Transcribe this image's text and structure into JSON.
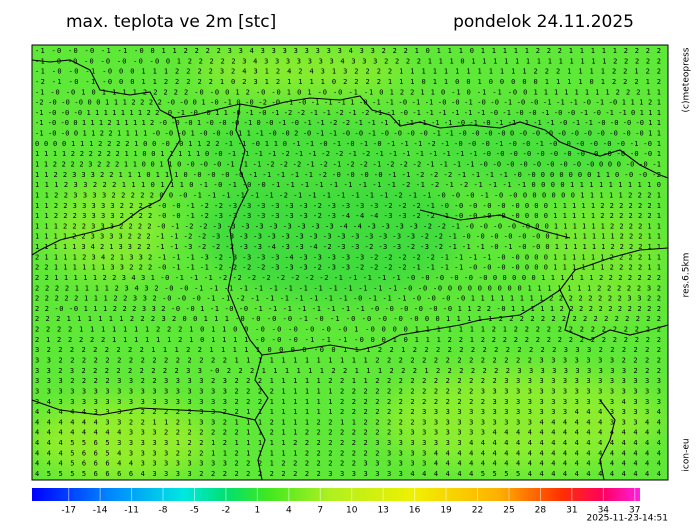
{
  "header": {
    "title": "max. teplota ve 2m [stc]",
    "date": "pondelok 24.11.2025"
  },
  "side_labels": [
    "(c)meteopress",
    "res.6.5km",
    "icon-eu"
  ],
  "grid_rows": [
    "-1 -0 -0 -0 -1 -1 -0 0 1 1 2 2 2 2 3 3 4 3 3 3 3 3 3 3 3 4 3 3 2 2 2 1 0 1 1 1 0 1 1 1 1 1 2 2 2 1 1 1 1 1 2 2 2 2",
    "-1 -0 -0 -0 -0 -0 -0 -0 0 1 2 2 2 2 2 3 4 3 3 3 3 3 3 3 4 3 3 3 2 2 2 2 1 1 1 0 1 1 1 1 1 1 1 1 1 1 1 1 1 2 2 2 2 2",
    "-1 -0 -0 -1 -0 0 0 1 1 1 2 2 2 2 3 2 4 3 1 2 4 2 4 3 1 3 2 2 2 2 1 1 1 1 1 1 1 1 1 1 1 1 2 2 2 1 1 1 1 2 2 1 2 2",
    "-2 -1 -0 -1 -0 0 0 1 1 2 2 2 2 2 1 0 2 3 1 2 1 1 1 1 0 2 2 2 2 1 1 1 0 1 1 0 0 1 0 0 0 0 0 1 1 1 1 0 1 2 2 2 1 2",
    "-1 -0 -0 1 0 1 1 1 1 2 2 2 2 2 -0 -0 0 1 2 -0 -0 1 0 1 -0 -0 -1 -1 0 1 2 2 1 1 0 -1 0 -1 -1 -0 0 1 1 1 1 1 1 1 1 2 2 2 1 1",
    "-2 -0 -0 -0 0 0 1 1 1 2 2 2 2 -0 -0 0 1 -0 -1 0 -0 -2 -0 -1 -0 -1 -1 -1 1 -0 -1 -1 -0 -1 -1 -0 -0 -1 -0 -0 -1 -0 -0 -1 -1 -1 -0 -1 -0 1 1 1 2 1",
    "-1 -0 -0 -0 1 1 1 1 1 1 1 2 2 -0 -1 -0 -0 1 1 -0 -1 -0 -1 -2 -2 -1 -1 -2 -1 -2 -1 -1 -0 -1 -1 -1 -1 -1 -1 -0 -1 -0 -0 -1 -0 -0 -1 -0 -1 -1 0 1 1 1",
    "-1 -0 -0 0 1 1 1 2 1 1 1 1 2 -0 -0 -0 1 -0 -0 -0 -1 0 -0 -1 -0 -1 -1 -2 -2 -1 -1 -1 -1 -1 -1 -1 -1 -0 -1 -0 -1 -1 -1 -1 -1 -0 -1 -1 -0 -0 -0 -0 1 1",
    "-1 -0 -0 0 1 1 2 2 1 1 1 1 -0 -0 -0 1 -0 -0 -0 1 1 -1 -0 -0 2 -0 -1 -1 -0 -0 -1 -0 -0 -0 -0 -1 -1 -0 -0 -0 -0 0 -0 -0 -0 -0 -0 -0 -0 -0 -0 -0 1 1",
    "0 0 0 0 1 1 1 2 2 2 2 1 0 0 -0 -0 1 1 2 2 -1 -1 -0 1 1 0 -1 -1 -0 -1 -0 -1 -0 -1 -1 -1 -2 -1 -0 -0 -0 -1 -0 -0 -1 -0 -0 -0 -0 -0 -0 -1 -0 1",
    "1 1 1 1 2 2 2 2 2 2 1 1 0 0 1 1 1 1 1 0 -0 -1 -1 -1 -1 -2 -1 -1 -2 -2 -1 -2 -1 -1 -1 -1 -1 -1 -1 -1 -0 -0 -0 -0 -0 -0 -0 -0 -0 -0 -0 -0 -0 1",
    "1 1 2 2 2 2 3 2 2 2 1 1 0 0 1 1 0 -0 -0 -0 -1 -1 -1 -2 -2 -2 -1 -2 -1 -2 -2 -1 -2 -2 -2 -1 -1 -1 -1 -0 -0 -0 -0 -0 -0 -0 -0 -0 0 0 0 -0 -0 -1",
    "1 1 2 2 3 3 3 2 2 1 1 1 0 1 1 1 0 -0 -0 -0 -0 -1 -1 -1 -1 -1 -2 -0 -0 -0 -0 -1 -1 -2 -2 -2 -1 -1 -1 -1 -0 -0 0 0 0 0 0 0 1 1 0 -0 -0 -2",
    "1 1 1 2 3 3 2 2 2 1 1 1 0 1 1 1 0 -1 -0 -1 -0 -0 -1 -1 -1 -1 -1 -1 -1 -1 -1 -2 -1 -2 -1 -2 -1 -1 -1 -1 0 0 0 0 1 1 1 1 1 1 1 1 1 0",
    "1 1 2 2 3 3 3 3 2 2 2 2 2 0 0 -0 -1 -1 -1 -1 -1 -1 -2 -1 -1 -1 -1 -1 -1 -1 -2 -1 -1 -0 -0 -0 -1 -0 -0 0 0 0 0 0 0 1 1 1 1 1 2 2 2 1",
    "1 1 2 2 3 3 3 3 3 2 2 2 2 -0 -0 -1 -2 -2 -3 -3 -3 -3 -3 -3 -2 -3 -3 -3 -3 -2 -2 -2 -1 -0 -0 -0 -0 -0 -0 0 0 0 1 1 1 1 1 2 2 2 2 2 2 1",
    "1 1 2 2 2 3 3 3 3 2 2 2 2 -0 -0 -1 -2 -3 -3 -3 -3 -3 -3 -3 -2 -3 -4 -4 -4 -3 -3 -2 -2 -1 -0 -0 -0 -0 -0 0 0 0 1 1 1 1 1 2 2 2 2 2 2 1",
    "1 1 1 2 2 2 3 3 3 2 2 2 2 -0 -1 -2 -2 -3 -3 -3 -3 -3 -3 -3 -3 -3 -4 -4 -3 -3 -3 -3 -2 -2 -1 -0 -0 -0 -0 -0 0 0 1 1 1 1 1 1 2 2 2 2 1 1",
    "1 1 1 1 2 2 3 3 3 3 2 2 2 -1 -1 -2 -2 -3 -3 -3 -3 -3 -3 -3 -3 -3 -3 -3 -3 -3 -3 -3 -2 -2 -1 -0 -0 -0 -0 -0 -0 0 1 1 1 1 1 1 1 2 2 2 1 1",
    "1 1 1 1 1 3 4 2 1 3 3 2 2 -1 -1 -3 -2 -2 -2 -3 -3 -4 -3 -3 -4 -2 -3 -3 -2 -3 -3 -2 -3 -2 -1 -1 -1 -0 -1 -0 -0 0 1 1 1 1 1 1 2 2 2 2 1 1",
    "2 1 1 1 1 2 3 4 2 1 3 3 2 -1 -1 -1 -3 -2 -3 -3 -3 -3 -4 -3 -3 -3 -3 -3 -2 -2 -2 -2 -2 -1 -1 -1 -1 -0 -0 0 0 0 1 1 1 1 1 1 2 2 2 2 1 1",
    "2 2 1 1 1 1 1 1 3 3 2 2 2 -0 -1 -1 -1 -2 -2 -2 -2 -3 -3 -3 -2 -3 -3 -2 -2 -2 -2 -1 -1 -1 -1 -0 -0 -0 -0 0 0 0 1 1 1 1 1 1 2 2 2 2 1 1",
    "2 2 1 1 1 1 1 2 2 3 4 3 1 -0 -1 -1 -1 -2 -2 -2 -2 -2 -2 -2 -2 -1 -1 -1 -1 -1 -0 -0 -0 -0 -0 -0 0 0 0 0 0 1 1 1 1 1 1 2 2 2 2 2 2 2",
    "2 2 2 2 1 1 1 1 2 3 4 3 2 -0 -0 -1 -1 -1 -1 -1 -1 -1 -1 -1 -1 -1 -1 -1 -1 -0 -0 -0 0 0 0 0 0 0 0 0 1 1 1 1 1 1 1 2 2 2 2 2 3 2",
    "2 2 2 2 2 1 1 1 2 2 3 3 2 -0 -0 -0 -1 -1 -2 -1 -1 -1 -1 -1 -1 -1 -0 -1 -1 -1 -0 -0 -0 -0 1 1 1 1 1 1 1 1 2 2 2 2 2 2 2 2 3 3 2 2",
    "2 2 -0 -0 1 1 1 2 2 2 3 3 2 -0 -0 1 -1 -0 -0 -1 -1 -1 -1 -1 -1 -1 -1 -0 -0 -0 -0 -0 -0 1 1 2 2 -0 1 1 1 1 1 2 2 2 2 2 2 2 2 2 2 2",
    "2 2 2 1 1 1 1 1 1 2 2 2 3 2 0 0 1 1 1 -0 -0 -0 -0 -1 -0 -1 -0 -0 -0 -0 -0 0 0 1 1 1 1 1 2 2 2 2 2 2 2 2 2 2 2 2 2 2 2 2",
    "2 2 2 2 1 1 1 1 1 1 1 2 2 2 1 0 1 1 0 0 -0 -0 -0 -0 -0 -0 1 -0 0 0 0 1 1 1 1 1 1 1 2 1 2 2 2 2 2 2 2 2 2 2 2 2 2 2",
    "2 1 2 2 2 2 2 1 1 1 1 1 1 2 1 0 1 1 1 1 -0 -0 -0 -1 -1 -1 -0 0 0 1 0 1 1 1 2 2 1 2 2 2 2 2 2 2 2 2 2 2 2 2 2 2 2 2",
    "3 2 2 2 2 2 2 2 2 2 1 1 1 2 2 1 1 1 1 1 0 0 0 0 -0 0 1 1 1 2 2 1 2 2 2 2 2 2 2 2 2 2 2 2 2 3 3 3 2 2 2 2 2 2",
    "3 3 2 2 2 2 2 2 2 2 2 2 2 2 2 2 2 1 1 1 1 1 1 1 1 1 1 1 1 2 2 2 2 2 2 2 2 2 2 2 2 2 2 3 3 3 3 3 3 3 2 2 2 2",
    "3 3 2 3 2 2 2 2 2 2 2 2 2 3 3 -0 2 2 2 1 1 1 1 1 1 2 2 1 1 1 2 2 2 1 2 2 2 2 2 2 2 3 3 3 3 3 3 3 3 3 3 2 2 2",
    "3 3 3 2 2 2 2 3 3 2 2 3 3 3 3 2 3 2 2 2 1 1 1 1 1 2 2 1 1 2 2 2 2 2 2 2 2 2 2 2 3 3 3 3 3 3 3 3 3 3 3 3 3 3",
    "3 3 3 3 3 3 3 3 3 3 3 3 3 3 3 3 3 2 2 2 2 1 1 1 1 1 2 2 2 2 2 2 2 2 2 2 2 2 3 3 3 3 3 3 3 3 3 3 3 3 3 3 3 3",
    "3 4 3 3 3 3 3 3 3 3 3 3 3 3 3 3 3 2 2 2 1 1 1 1 1 1 2 2 2 2 2 2 2 2 2 2 2 2 2 3 3 3 3 3 3 3 3 3 3 3 4 3 3 3",
    "4 4 4 4 4 3 3 3 2 2 2 2 2 2 3 3 2 2 1 1 1 1 1 1 1 1 2 2 2 2 2 2 2 3 3 3 3 3 3 3 3 3 3 3 3 3 4 4 4 3 3 3 3 4",
    "4 4 4 4 4 4 3 3 2 2 1 1 2 1 3 3 2 1 1 1 2 1 1 1 2 2 1 1 2 2 2 2 2 3 3 3 3 3 3 3 3 3 3 4 4 4 4 4 4 3 3 3 4 4",
    "4 4 4 4 4 4 4 4 3 3 3 2 2 2 2 2 2 2 1 1 2 1 1 2 2 2 2 2 2 2 2 3 3 3 3 3 3 3 3 4 4 4 4 4 4 4 4 4 4 4 4 4 4 4",
    "4 4 4 5 5 6 5 3 3 3 3 3 1 2 2 1 2 1 1 1 1 1 2 2 2 2 2 2 2 3 3 3 3 3 3 3 3 4 4 4 4 4 4 4 4 4 4 4 4 4 4 4 4 4",
    "4 4 4 5 6 6 5 4 3 3 3 3 2 2 2 1 1 2 1 1 1 1 1 2 2 2 2 2 2 2 3 3 3 3 4 4 4 4 4 4 4 4 4 4 4 4 4 4 4 4 4 4 4 4",
    "4 4 4 5 6 6 6 4 4 3 3 3 3 3 3 3 3 2 2 2 1 2 2 2 2 2 2 2 3 3 3 3 3 3 4 4 4 4 4 4 4 4 4 4 4 4 4 4 4 4 4 4 4 4",
    "4 5 5 5 5 6 6 6 6 4 3 3 3 3 2 2 2 2 2 2 2 2 2 2 2 3 3 3 3 3 3 3 4 4 4 4 4 4 5 5 5 5 4 4 4 4 4 4 4 4 4 4 4 4"
  ],
  "colorbar": {
    "lim": [
      -20.5,
      37.5
    ],
    "ticks": [
      -17,
      -14,
      -11,
      -8,
      -5,
      -2,
      1,
      4,
      7,
      10,
      13,
      16,
      19,
      22,
      25,
      28,
      31,
      34,
      37
    ],
    "stops": [
      {
        "value": -20.5,
        "color": "#0000ff"
      },
      {
        "value": -13,
        "color": "#0088ff"
      },
      {
        "value": -6,
        "color": "#00e8e0"
      },
      {
        "value": -2,
        "color": "#00e070"
      },
      {
        "value": 2,
        "color": "#40e820"
      },
      {
        "value": 8,
        "color": "#b0f020"
      },
      {
        "value": 16,
        "color": "#f0f000"
      },
      {
        "value": 24,
        "color": "#ffb000"
      },
      {
        "value": 30,
        "color": "#ff3000"
      },
      {
        "value": 34,
        "color": "#ff0060"
      },
      {
        "value": 37.5,
        "color": "#ff20e0"
      }
    ]
  },
  "timestamp": "2025-11-23-14:51"
}
